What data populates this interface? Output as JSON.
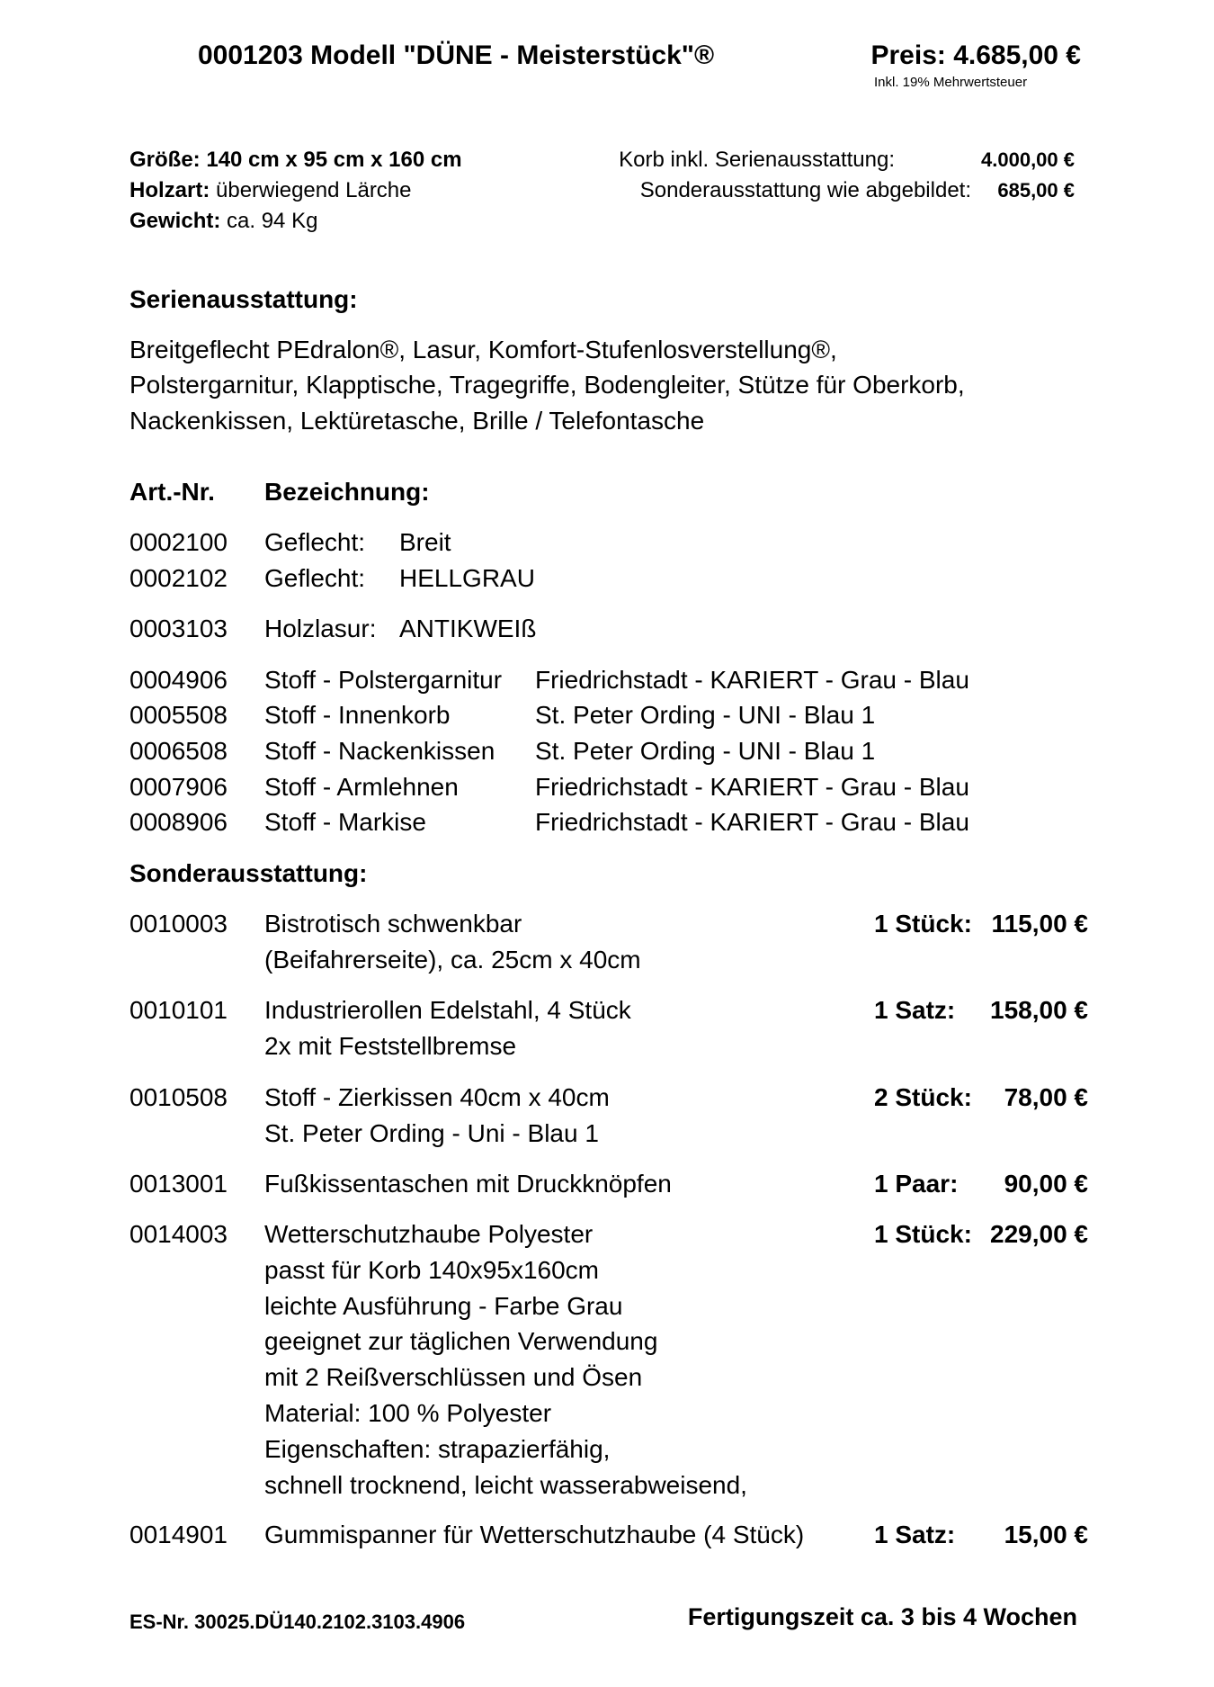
{
  "header": {
    "title": "0001203 Modell \"DÜNE - Meisterstück\"®",
    "price": "Preis: 4.685,00 €",
    "vat_note": "Inkl. 19% Mehrwertsteuer"
  },
  "specs": {
    "size_label": "Größe:",
    "size_value": "140 cm x 95 cm x 160 cm",
    "wood_label": "Holzart:",
    "wood_value": "überwiegend Lärche",
    "weight_label": "Gewicht:",
    "weight_value": "ca. 94 Kg",
    "base_label": "Korb inkl. Serienausstattung:",
    "base_value": "4.000,00 €",
    "extra_label": "Sonderausstattung wie abgebildet:",
    "extra_value": "685,00 €"
  },
  "standard": {
    "heading": "Serienausstattung:",
    "lines": [
      "Breitgeflecht PEdralon®, Lasur, Komfort-Stufenlosverstellung®,",
      "Polstergarnitur, Klapptische, Tragegriffe, Bodengleiter, Stütze für Oberkorb,",
      "Nackenkissen, Lektüretasche, Brille / Telefontasche"
    ]
  },
  "table": {
    "col_art": "Art.-Nr.",
    "col_name": "Bezeichnung:",
    "rows": [
      {
        "art": "0002100",
        "name": "Geflecht:",
        "value": "Breit"
      },
      {
        "art": "0002102",
        "name": "Geflecht:",
        "value": "HELLGRAU"
      },
      {
        "art": "0003103",
        "name": "Holzlasur:",
        "value": "ANTIKWEIß"
      },
      {
        "art": "0004906",
        "name": "Stoff - Polstergarnitur",
        "value": "Friedrichstadt - KARIERT - Grau - Blau"
      },
      {
        "art": "0005508",
        "name": "Stoff - Innenkorb",
        "value": "St. Peter Ording - UNI - Blau 1"
      },
      {
        "art": "0006508",
        "name": "Stoff - Nackenkissen",
        "value": "St. Peter Ording - UNI - Blau 1"
      },
      {
        "art": "0007906",
        "name": "Stoff - Armlehnen",
        "value": "Friedrichstadt - KARIERT - Grau - Blau"
      },
      {
        "art": "0008906",
        "name": "Stoff - Markise",
        "value": "Friedrichstadt - KARIERT - Grau - Blau"
      }
    ]
  },
  "extras": {
    "heading": "Sonderausstattung:",
    "items": [
      {
        "art": "0010003",
        "lines": [
          "Bistrotisch schwenkbar",
          "(Beifahrerseite), ca. 25cm x 40cm"
        ],
        "qty": "1 Stück:",
        "price": "115,00 €"
      },
      {
        "art": "0010101",
        "lines": [
          "Industrierollen Edelstahl, 4 Stück",
          "2x mit Feststellbremse"
        ],
        "qty": "1 Satz:",
        "price": "158,00 €"
      },
      {
        "art": "0010508",
        "lines": [
          "Stoff - Zierkissen 40cm x 40cm",
          "St. Peter Ording - Uni - Blau 1"
        ],
        "qty": "2 Stück:",
        "price": "78,00 €"
      },
      {
        "art": "0013001",
        "lines": [
          "Fußkissentaschen mit Druckknöpfen"
        ],
        "qty": "1 Paar:",
        "price": "90,00 €"
      },
      {
        "art": "0014003",
        "lines": [
          "Wetterschutzhaube Polyester",
          "passt für Korb 140x95x160cm",
          "leichte Ausführung - Farbe Grau",
          "geeignet zur täglichen Verwendung",
          "mit 2 Reißverschlüssen und Ösen",
          "Material: 100 % Polyester",
          "Eigenschaften: strapazierfähig,",
          "schnell trocknend, leicht wasserabweisend,"
        ],
        "qty": "1 Stück:",
        "price": "229,00 €"
      },
      {
        "art": "0014901",
        "lines": [
          "Gummispanner für Wetterschutzhaube (4 Stück)"
        ],
        "qty": "1 Satz:",
        "price": "15,00 €"
      }
    ]
  },
  "footer": {
    "es_nr": "ES-Nr. 30025.DÜ140.2102.3103.4906",
    "production": "Fertigungszeit ca. 3 bis 4 Wochen"
  }
}
